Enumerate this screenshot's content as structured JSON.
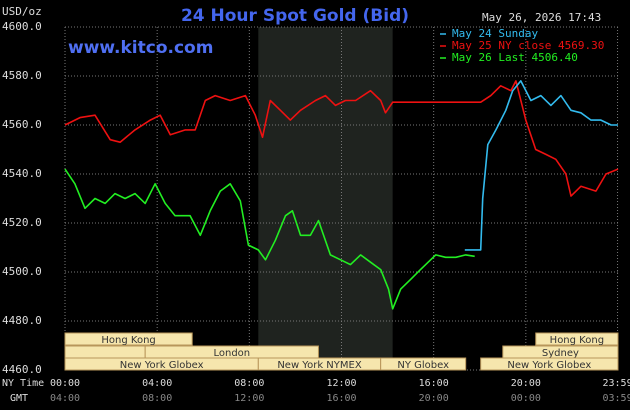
{
  "chart_data": {
    "type": "line",
    "title": "24 Hour Spot Gold (Bid)",
    "timestamp": "May 26, 2026 17:43",
    "source": "www.kitco.com",
    "y_unit": "USD/oz",
    "x_label": "NY Time",
    "x2_label": "GMT",
    "xlim": [
      0,
      24
    ],
    "xticks": [
      {
        "value": 0,
        "label": "00:00"
      },
      {
        "value": 4,
        "label": "04:00"
      },
      {
        "value": 8,
        "label": "08:00"
      },
      {
        "value": 12,
        "label": "12:00"
      },
      {
        "value": 16,
        "label": "16:00"
      },
      {
        "value": 20,
        "label": "20:00"
      },
      {
        "value": 23.98,
        "label": "23:59"
      }
    ],
    "x2ticks": [
      {
        "value": 0,
        "label": "04:00"
      },
      {
        "value": 4,
        "label": "08:00"
      },
      {
        "value": 8,
        "label": "12:00"
      },
      {
        "value": 12,
        "label": "16:00"
      },
      {
        "value": 16,
        "label": "20:00"
      },
      {
        "value": 20,
        "label": "00:00"
      },
      {
        "value": 23.98,
        "label": "03:59"
      }
    ],
    "ylim": [
      4460,
      4600
    ],
    "yticks": [
      {
        "value": 4460,
        "label": "4460.0"
      },
      {
        "value": 4480,
        "label": "4480.0"
      },
      {
        "value": 4500,
        "label": "4500.0"
      },
      {
        "value": 4520,
        "label": "4520.0"
      },
      {
        "value": 4540,
        "label": "4540.0"
      },
      {
        "value": 4560,
        "label": "4560.0"
      },
      {
        "value": 4580,
        "label": "4580.0"
      },
      {
        "value": 4600,
        "label": "4600.0"
      }
    ],
    "grid": true,
    "legend": "top-right",
    "shade": {
      "start": 8.39,
      "end": 14.22
    },
    "series": [
      {
        "name": "May 24 Sunday",
        "color": "#33bbee",
        "x": [
          17.35,
          18.04,
          18.13,
          18.35,
          18.7,
          19.13,
          19.43,
          19.78,
          20.22,
          20.65,
          21.09,
          21.52,
          21.96,
          22.39,
          22.83,
          23.26,
          23.7,
          24
        ],
        "values": [
          4509,
          4509,
          4530,
          4552,
          4558,
          4566,
          4574,
          4578,
          4570,
          4572,
          4568,
          4572,
          4566,
          4565,
          4562,
          4562,
          4560,
          4560
        ]
      },
      {
        "name": "May 25 NY close 4569.30",
        "color": "#ee1111",
        "x": [
          0,
          0.65,
          1.3,
          1.96,
          2.39,
          3.04,
          3.7,
          4.13,
          4.57,
          5.22,
          5.65,
          6.09,
          6.52,
          7.17,
          7.83,
          8.26,
          8.57,
          8.91,
          9.35,
          9.78,
          10.22,
          10.87,
          11.3,
          11.74,
          12.17,
          12.61,
          13.26,
          13.7,
          13.91,
          14.22,
          18.04,
          18.48,
          18.91,
          19.35,
          19.57,
          20.0,
          20.43,
          20.87,
          21.3,
          21.74,
          21.96,
          22.39,
          23.04,
          23.48,
          24
        ],
        "values": [
          4560,
          4563,
          4564,
          4554,
          4553,
          4558,
          4562,
          4564,
          4556,
          4558,
          4558,
          4570,
          4572,
          4570,
          4572,
          4564,
          4555,
          4570,
          4566,
          4562,
          4566,
          4570,
          4572,
          4568,
          4570,
          4570,
          4574,
          4570,
          4565,
          4569.3,
          4569.3,
          4572,
          4576,
          4574,
          4578,
          4562,
          4550,
          4548,
          4546,
          4540,
          4531,
          4535,
          4533,
          4540,
          4542
        ]
      },
      {
        "name": "May 26 Last 4506.40",
        "color": "#22ee22",
        "x": [
          0,
          0.43,
          0.87,
          1.3,
          1.74,
          2.17,
          2.61,
          3.04,
          3.48,
          3.91,
          4.35,
          4.78,
          5.43,
          5.87,
          6.3,
          6.74,
          7.17,
          7.61,
          7.96,
          8.39,
          8.7,
          9.13,
          9.57,
          9.87,
          10.22,
          10.65,
          11.0,
          11.52,
          11.96,
          12.39,
          12.83,
          13.26,
          13.7,
          14.04,
          14.22,
          14.57,
          15.0,
          15.43,
          16.09,
          16.52,
          16.96,
          17.39,
          17.78
        ],
        "values": [
          4542,
          4536,
          4526,
          4530,
          4528,
          4532,
          4530,
          4532,
          4528,
          4536,
          4528,
          4523,
          4523,
          4515,
          4525,
          4533,
          4536,
          4529,
          4511,
          4509,
          4505,
          4513,
          4523,
          4525,
          4515,
          4515,
          4521,
          4507,
          4505,
          4503,
          4507,
          4504,
          4501,
          4493,
          4485,
          4493,
          4497,
          4501,
          4507,
          4506,
          4506,
          4507,
          4506.4
        ]
      }
    ],
    "sessions": [
      [
        {
          "label": "Hong Kong",
          "start": 0,
          "end": 5.52
        },
        {
          "label": "Hong Kong",
          "start": 20.43,
          "end": 24
        }
      ],
      [
        {
          "start": 0,
          "end": 3.48
        },
        {
          "label": "London",
          "start": 3.48,
          "end": 11.0
        },
        {
          "label": "Sydney",
          "start": 19.0,
          "end": 24
        }
      ],
      [
        {
          "label": "New York Globex",
          "start": 0,
          "end": 8.39
        },
        {
          "label": "New York NYMEX",
          "start": 8.39,
          "end": 13.7
        },
        {
          "label": "NY Globex",
          "start": 13.7,
          "end": 17.39
        },
        {
          "label": "New York Globex",
          "start": 18.04,
          "end": 24
        }
      ]
    ]
  }
}
